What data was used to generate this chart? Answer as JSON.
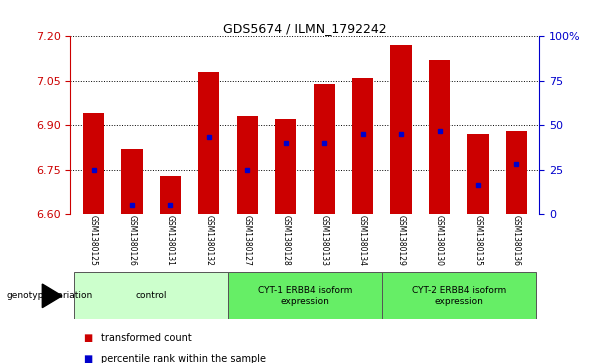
{
  "title": "GDS5674 / ILMN_1792242",
  "samples": [
    "GSM1380125",
    "GSM1380126",
    "GSM1380131",
    "GSM1380132",
    "GSM1380127",
    "GSM1380128",
    "GSM1380133",
    "GSM1380134",
    "GSM1380129",
    "GSM1380130",
    "GSM1380135",
    "GSM1380136"
  ],
  "bar_values": [
    6.94,
    6.82,
    6.73,
    7.08,
    6.93,
    6.92,
    7.04,
    7.06,
    7.17,
    7.12,
    6.87,
    6.88
  ],
  "percentile_values": [
    6.75,
    6.63,
    6.63,
    6.86,
    6.75,
    6.84,
    6.84,
    6.87,
    6.87,
    6.88,
    6.7,
    6.77
  ],
  "ymin": 6.6,
  "ymax": 7.2,
  "yticks": [
    6.6,
    6.75,
    6.9,
    7.05,
    7.2
  ],
  "y2ticks": [
    0,
    25,
    50,
    75,
    100
  ],
  "y2labels": [
    "0",
    "25",
    "50",
    "75",
    "100%"
  ],
  "bar_color": "#cc0000",
  "dot_color": "#0000cc",
  "bar_width": 0.55,
  "groups": [
    {
      "label": "control",
      "start": 0,
      "end": 3,
      "color": "#ccffcc"
    },
    {
      "label": "CYT-1 ERBB4 isoform\nexpression",
      "start": 4,
      "end": 7,
      "color": "#66ee66"
    },
    {
      "label": "CYT-2 ERBB4 isoform\nexpression",
      "start": 8,
      "end": 11,
      "color": "#66ee66"
    }
  ],
  "legend_items": [
    {
      "label": "transformed count",
      "color": "#cc0000"
    },
    {
      "label": "percentile rank within the sample",
      "color": "#0000cc"
    }
  ],
  "genotype_label": "genotype/variation",
  "bg_color": "#ffffff",
  "tick_label_area_color": "#cccccc",
  "grid_color": "#000000",
  "left_axis_color": "#cc0000",
  "right_axis_color": "#0000cc"
}
